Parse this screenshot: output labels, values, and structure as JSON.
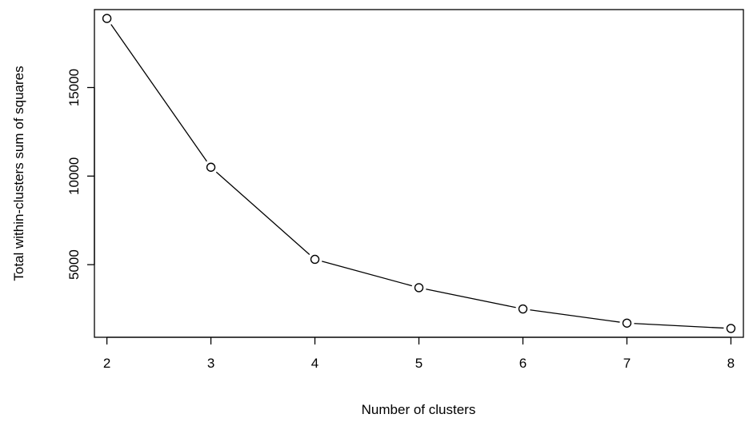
{
  "chart_data": {
    "type": "line",
    "title": "",
    "xlabel": "Number of clusters",
    "ylabel": "Total within-clusters sum of squares",
    "x": [
      2,
      3,
      4,
      5,
      6,
      7,
      8
    ],
    "series": [
      {
        "values": [
          18900,
          10500,
          5300,
          3700,
          2500,
          1700,
          1400
        ]
      }
    ],
    "xticks": [
      "2",
      "3",
      "4",
      "5",
      "6",
      "7",
      "8"
    ],
    "yticks": [
      "5000",
      "10000",
      "15000"
    ],
    "xlim": [
      1.88,
      8.12
    ],
    "ylim": [
      900,
      19400
    ],
    "grid": false,
    "marker": "open-circle",
    "line_color": "#000000"
  }
}
